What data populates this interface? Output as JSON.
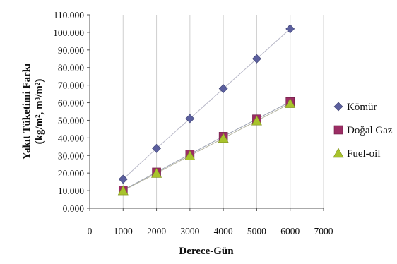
{
  "chart_data": {
    "type": "scatter",
    "xlabel": "Derece-Gün",
    "ylabel_line1": "Yakıt Tüketimi Farkı",
    "ylabel_line2": "(kg/m², m³/m²)",
    "xlim": [
      0,
      7000
    ],
    "ylim": [
      0,
      110000
    ],
    "x_ticks": [
      0,
      1000,
      2000,
      3000,
      4000,
      5000,
      6000,
      7000
    ],
    "x_tick_labels": [
      "0",
      "1000",
      "2000",
      "3000",
      "4000",
      "5000",
      "6000",
      "7000"
    ],
    "y_ticks": [
      0,
      10000,
      20000,
      30000,
      40000,
      50000,
      60000,
      70000,
      80000,
      90000,
      100000,
      110000
    ],
    "y_tick_labels": [
      "0.000",
      "10.000",
      "20.000",
      "30.000",
      "40.000",
      "50.000",
      "60.000",
      "70.000",
      "80.000",
      "90.000",
      "100.000",
      "110.000"
    ],
    "grid": "vertical",
    "legend_position": "right",
    "x": [
      1000,
      2000,
      3000,
      4000,
      5000,
      6000
    ],
    "series": [
      {
        "name": "Kömür",
        "marker": "diamond",
        "color": "#5b5f9e",
        "values": [
          16500,
          34000,
          51000,
          68000,
          85000,
          102000
        ]
      },
      {
        "name": "Doğal Gaz",
        "marker": "square",
        "color": "#9c2d64",
        "values": [
          10300,
          20500,
          30700,
          40800,
          50700,
          60500
        ]
      },
      {
        "name": "Fuel-oil",
        "marker": "triangle",
        "color": "#a8c32c",
        "values": [
          10000,
          19900,
          29900,
          39800,
          49700,
          59600
        ]
      }
    ]
  }
}
